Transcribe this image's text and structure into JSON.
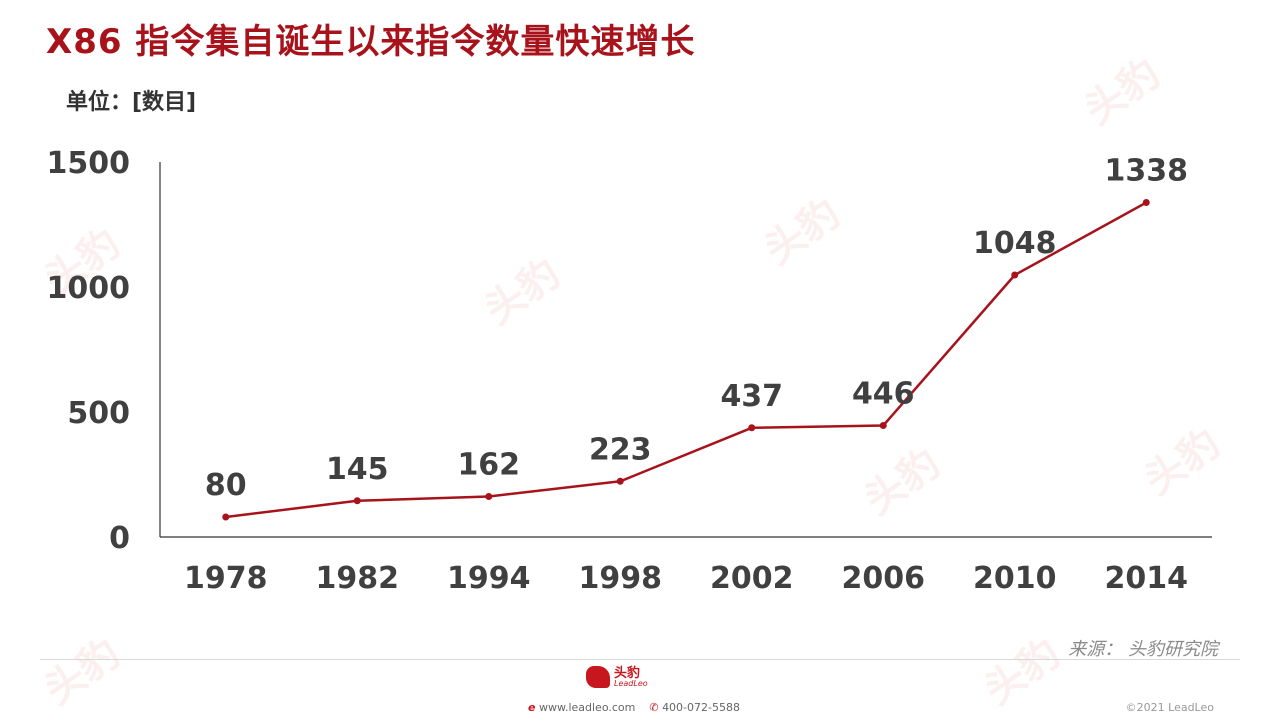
{
  "header": {
    "title": "X86 指令集自诞生以来指令数量快速增长",
    "unit": "单位：[数目]"
  },
  "chart_data": {
    "type": "line",
    "title": "X86 指令集自诞生以来指令数量快速增长",
    "xlabel": "",
    "ylabel": "单位：[数目]",
    "categories": [
      "1978",
      "1982",
      "1994",
      "1998",
      "2002",
      "2006",
      "2010",
      "2014"
    ],
    "series": [
      {
        "values": [
          80,
          145,
          162,
          223,
          437,
          446,
          1048,
          1338
        ]
      }
    ],
    "ylim": [
      0,
      1500
    ],
    "yticks": [
      0,
      500,
      1000,
      1500
    ],
    "grid": false,
    "legend": "none",
    "line_color": "#a8131b",
    "axis_color": "#333333",
    "label_color": "#404040"
  },
  "footer": {
    "source": "来源： 头豹研究院",
    "logo_cn": "头豹",
    "logo_en": "LeadLeo",
    "website": "www.leadleo.com",
    "phone": "400-072-5588",
    "copyright": "©2021 LeadLeo"
  },
  "watermark": {
    "text": "头豹"
  }
}
